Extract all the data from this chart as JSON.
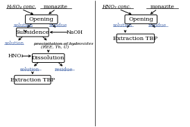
{
  "bg_color": "#ffffff",
  "box_color": "#ffffff",
  "box_edge": "#000000",
  "text_color": "#000000",
  "blue_color": "#4466aa",
  "left": {
    "h2so4_label": "H₂SO₄ conc.",
    "monazite_label": "monazite",
    "box1_label": "Opening",
    "solution1_label": "solution",
    "residue1_label": "residue",
    "naoh_label": "NaOH",
    "box2_label": "Subsidence",
    "solution2_label": "solution",
    "precip_label": "precipitation of hydroxides",
    "precip_label2": "(REE, Th, U)",
    "hno3_label": "HNO₃",
    "box3_label": "Dissolution",
    "solution3_label": "solution",
    "residue3_label": "residue",
    "box4_label": "Extraction TBP"
  },
  "right": {
    "hno3_label": "HNO₃ conc.",
    "monazite_label": "monazite",
    "box1_label": "Opening",
    "solution_label": "solution",
    "residue_label": "residue",
    "box2_label": "Extraction TBP"
  }
}
